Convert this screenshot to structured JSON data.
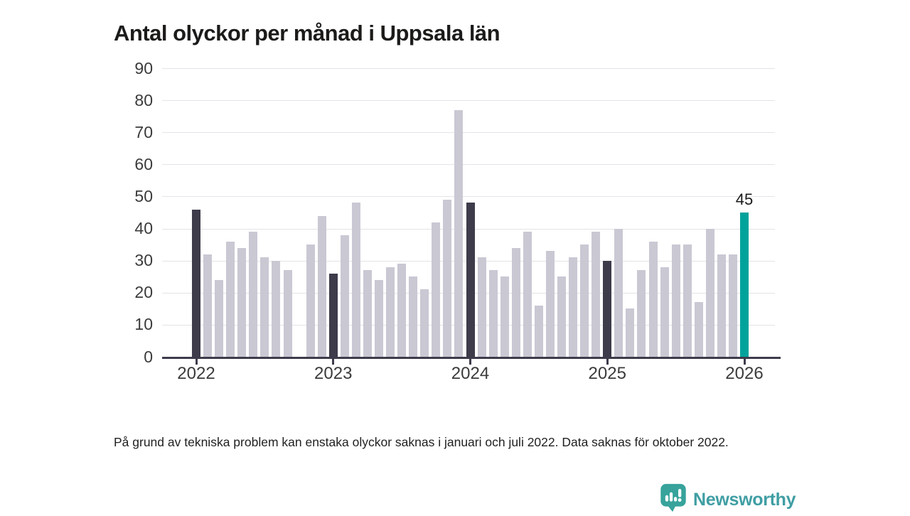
{
  "header": {
    "title": "Antal olyckor per månad i Uppsala län"
  },
  "chart_data": {
    "type": "bar",
    "title": "Antal olyckor per månad i Uppsala län",
    "ylabel": "",
    "xlabel": "",
    "ylim": [
      0,
      90
    ],
    "y_ticks": [
      0,
      10,
      20,
      30,
      40,
      50,
      60,
      70,
      80,
      90
    ],
    "x_tick_labels": [
      "2022",
      "2023",
      "2024",
      "2025",
      "2026"
    ],
    "grid": "horizontal",
    "legend": "none",
    "bar_colors": {
      "default": "#c9c8d3",
      "january": "#3e3b4b",
      "latest": "#00a39b"
    },
    "series": [
      {
        "month": "2022-01",
        "value": 46,
        "color": "january"
      },
      {
        "month": "2022-02",
        "value": 32
      },
      {
        "month": "2022-03",
        "value": 24
      },
      {
        "month": "2022-04",
        "value": 36
      },
      {
        "month": "2022-05",
        "value": 34
      },
      {
        "month": "2022-06",
        "value": 39
      },
      {
        "month": "2022-07",
        "value": 31
      },
      {
        "month": "2022-08",
        "value": 30
      },
      {
        "month": "2022-09",
        "value": 27
      },
      {
        "month": "2022-10",
        "value": null
      },
      {
        "month": "2022-11",
        "value": 35
      },
      {
        "month": "2022-12",
        "value": 44
      },
      {
        "month": "2023-01",
        "value": 26,
        "color": "january"
      },
      {
        "month": "2023-02",
        "value": 38
      },
      {
        "month": "2023-03",
        "value": 48
      },
      {
        "month": "2023-04",
        "value": 27
      },
      {
        "month": "2023-05",
        "value": 24
      },
      {
        "month": "2023-06",
        "value": 28
      },
      {
        "month": "2023-07",
        "value": 29
      },
      {
        "month": "2023-08",
        "value": 25
      },
      {
        "month": "2023-09",
        "value": 21
      },
      {
        "month": "2023-10",
        "value": 42
      },
      {
        "month": "2023-11",
        "value": 49
      },
      {
        "month": "2023-12",
        "value": 77
      },
      {
        "month": "2024-01",
        "value": 48,
        "color": "january"
      },
      {
        "month": "2024-02",
        "value": 31
      },
      {
        "month": "2024-03",
        "value": 27
      },
      {
        "month": "2024-04",
        "value": 25
      },
      {
        "month": "2024-05",
        "value": 34
      },
      {
        "month": "2024-06",
        "value": 39
      },
      {
        "month": "2024-07",
        "value": 16
      },
      {
        "month": "2024-08",
        "value": 33
      },
      {
        "month": "2024-09",
        "value": 25
      },
      {
        "month": "2024-10",
        "value": 31
      },
      {
        "month": "2024-11",
        "value": 35
      },
      {
        "month": "2024-12",
        "value": 39
      },
      {
        "month": "2025-01",
        "value": 30,
        "color": "january"
      },
      {
        "month": "2025-02",
        "value": 40
      },
      {
        "month": "2025-03",
        "value": 15
      },
      {
        "month": "2025-04",
        "value": 27
      },
      {
        "month": "2025-05",
        "value": 36
      },
      {
        "month": "2025-06",
        "value": 28
      },
      {
        "month": "2025-07",
        "value": 35
      },
      {
        "month": "2025-08",
        "value": 35
      },
      {
        "month": "2025-09",
        "value": 17
      },
      {
        "month": "2025-10",
        "value": 40
      },
      {
        "month": "2025-11",
        "value": 32
      },
      {
        "month": "2025-12",
        "value": 32
      },
      {
        "month": "2026-01",
        "value": 45,
        "color": "latest",
        "label": "45"
      }
    ]
  },
  "footnote": {
    "text": "På grund av tekniska problem kan enstaka olyckor saknas i januari och juli 2022. Data saknas för oktober 2022."
  },
  "branding": {
    "logo_text": "Newsworthy",
    "logo_icon": "newsworthy-speech-bubble-bars-icon",
    "icon_color": "#37a39b",
    "text_color": "#3f9ea3"
  }
}
